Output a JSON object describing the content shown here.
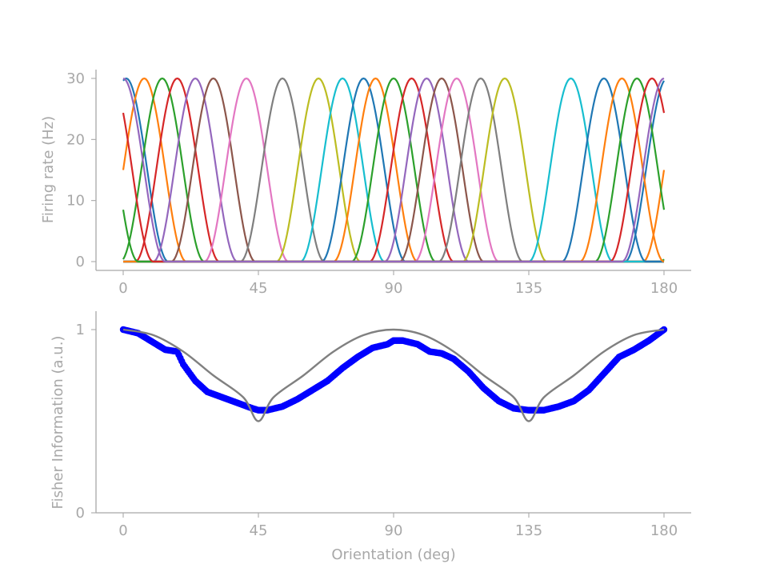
{
  "chart_data": [
    {
      "type": "line",
      "title": "",
      "xlabel": "",
      "ylabel": "Firing rate (Hz)",
      "xlim": [
        -10,
        190
      ],
      "ylim": [
        -1.5,
        31.5
      ],
      "xticks": [
        0,
        45,
        90,
        135,
        180
      ],
      "xtick_labels": [
        "0",
        "45",
        "90",
        "135",
        "180"
      ],
      "yticks": [
        0,
        10,
        20,
        30
      ],
      "ytick_labels": [
        "0",
        "10",
        "20",
        "30"
      ],
      "grid": false,
      "legend": "none",
      "tuning": {
        "peak_rate_hz": 30,
        "width_deg": 14,
        "period_deg": 180
      },
      "series_colors": [
        "#1f77b4",
        "#ff7f0e",
        "#2ca02c",
        "#d62728",
        "#9467bd",
        "#8c564b",
        "#e377c2",
        "#7f7f7f",
        "#bcbd22",
        "#17becf",
        "#1f77b4",
        "#ff7f0e",
        "#2ca02c",
        "#d62728",
        "#9467bd",
        "#8c564b",
        "#e377c2",
        "#7f7f7f",
        "#bcbd22",
        "#17becf",
        "#1f77b4",
        "#ff7f0e",
        "#2ca02c",
        "#d62728",
        "#9467bd"
      ],
      "preferred_orientations_deg": [
        1,
        7,
        13,
        18,
        24,
        30,
        41,
        53,
        65,
        73,
        80,
        84,
        90,
        96,
        101,
        106,
        111,
        119,
        127,
        149,
        160,
        166,
        171,
        176,
        180
      ]
    },
    {
      "type": "line",
      "title": "",
      "xlabel": "Orientation (deg)",
      "ylabel": "Fisher Information (a.u.)",
      "xlim": [
        -10,
        190
      ],
      "ylim": [
        0,
        1.05
      ],
      "xticks": [
        0,
        45,
        90,
        135,
        180
      ],
      "xtick_labels": [
        "0",
        "45",
        "90",
        "135",
        "180"
      ],
      "yticks": [
        0,
        1
      ],
      "ytick_labels": [
        "0",
        "1"
      ],
      "grid": false,
      "legend": "none",
      "series": [
        {
          "style": "line",
          "color": "#808080",
          "x": [
            0,
            10,
            20,
            30,
            40,
            45,
            50,
            60,
            70,
            80,
            90,
            100,
            110,
            120,
            130,
            135,
            140,
            150,
            160,
            170,
            180
          ],
          "y": [
            1.0,
            0.97,
            0.88,
            0.75,
            0.63,
            0.5,
            0.63,
            0.75,
            0.88,
            0.97,
            1.0,
            0.97,
            0.88,
            0.75,
            0.63,
            0.5,
            0.63,
            0.75,
            0.88,
            0.97,
            1.0
          ]
        },
        {
          "style": "points",
          "color": "#0000ff",
          "x": [
            0,
            5,
            10,
            14,
            18,
            20,
            24,
            28,
            33,
            38,
            43,
            45,
            48,
            53,
            58,
            63,
            68,
            73,
            78,
            83,
            88,
            90,
            93,
            98,
            102,
            106,
            110,
            115,
            120,
            125,
            130,
            135,
            140,
            145,
            150,
            155,
            160,
            165,
            170,
            175,
            180
          ],
          "y": [
            1.0,
            0.98,
            0.93,
            0.89,
            0.88,
            0.81,
            0.72,
            0.66,
            0.63,
            0.6,
            0.57,
            0.56,
            0.56,
            0.58,
            0.62,
            0.67,
            0.72,
            0.79,
            0.85,
            0.9,
            0.92,
            0.94,
            0.94,
            0.92,
            0.88,
            0.87,
            0.84,
            0.77,
            0.68,
            0.61,
            0.57,
            0.56,
            0.56,
            0.58,
            0.61,
            0.67,
            0.76,
            0.85,
            0.89,
            0.94,
            1.0
          ]
        }
      ]
    }
  ]
}
